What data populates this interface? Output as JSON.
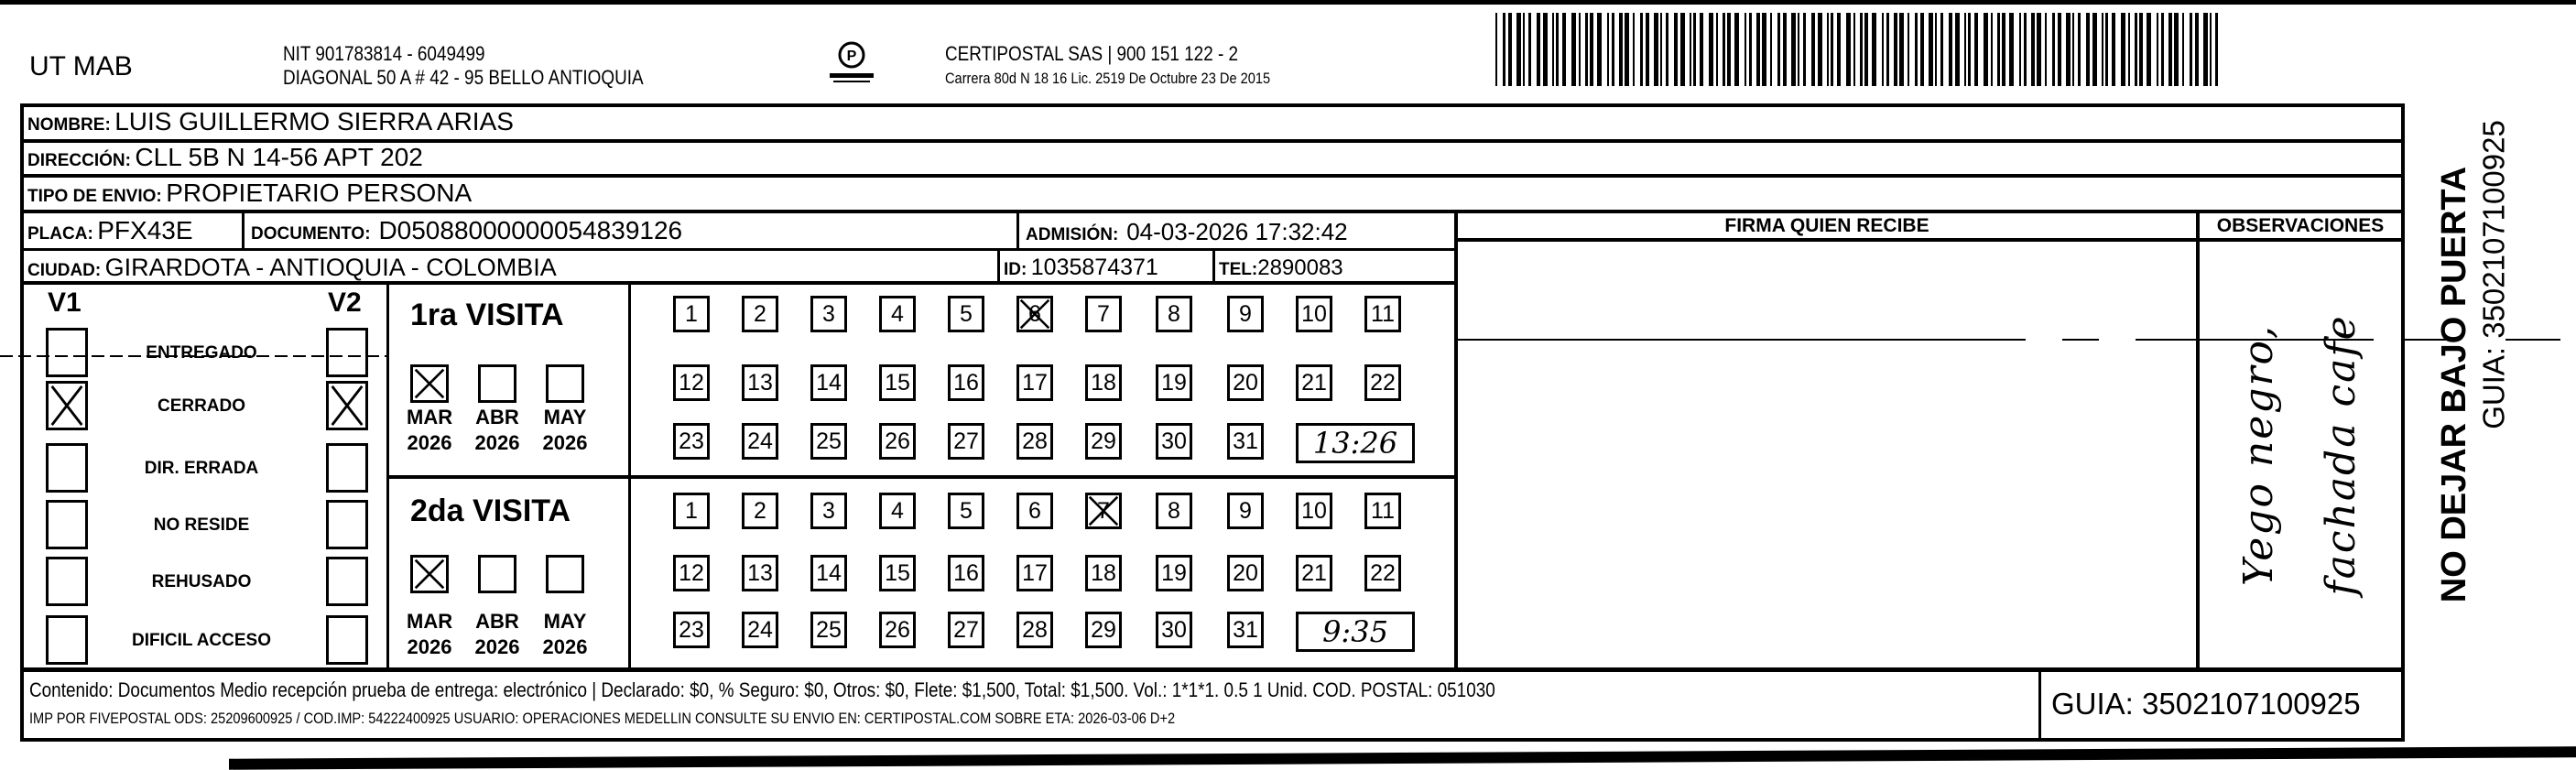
{
  "header": {
    "sender": "UT MAB",
    "nit": "NIT 901783814 - 6049499",
    "sender_address": "DIAGONAL 50 A # 42 - 95  BELLO  ANTIOQUIA",
    "logo_text": "CERTIPOSTAL",
    "company": "CERTIPOSTAL SAS | 900 151 122 - 2",
    "license": "Carrera 80d N 18 16  Lic. 2519 De Octubre 23 De 2015",
    "barcode_value": "3502107100925"
  },
  "recipient": {
    "nombre_label": "NOMBRE:",
    "nombre": "LUIS GUILLERMO SIERRA ARIAS",
    "direccion_label": "DIRECCIÓN:",
    "direccion": "CLL 5B N 14-56 APT 202",
    "tipo_label": "TIPO DE ENVIO:",
    "tipo": "PROPIETARIO PERSONA",
    "placa_label": "PLACA:",
    "placa": "PFX43E",
    "documento_label": "DOCUMENTO:",
    "documento": "D05088000000054839126",
    "admision_label": "ADMISIÓN:",
    "admision": "04-03-2026 17:32:42",
    "ciudad_label": "CIUDAD:",
    "ciudad": "GIRARDOTA - ANTIOQUIA - COLOMBIA",
    "id_label": "ID:",
    "id": "1035874371",
    "tel_label": "TEL:",
    "tel": "2890083"
  },
  "columns": {
    "firma": "FIRMA QUIEN RECIBE",
    "observaciones": "OBSERVACIONES",
    "observaciones_handwritten": "Yego negro, fachada cafe"
  },
  "status": {
    "v1_label": "V1",
    "v2_label": "V2",
    "items": [
      {
        "label": "ENTREGADO",
        "v1": false,
        "v2": false
      },
      {
        "label": "CERRADO",
        "v1": true,
        "v2": true
      },
      {
        "label": "DIR. ERRADA",
        "v1": false,
        "v2": false
      },
      {
        "label": "NO RESIDE",
        "v1": false,
        "v2": false
      },
      {
        "label": "REHUSADO",
        "v1": false,
        "v2": false
      },
      {
        "label": "DIFICIL ACCESO",
        "v1": false,
        "v2": false
      }
    ]
  },
  "visits": [
    {
      "title": "1ra VISITA",
      "months": [
        {
          "month": "MAR",
          "year": "2026",
          "checked": true
        },
        {
          "month": "ABR",
          "year": "2026",
          "checked": false
        },
        {
          "month": "MAY",
          "year": "2026",
          "checked": false
        }
      ],
      "checked_day": 6,
      "time": "13:26"
    },
    {
      "title": "2da VISITA",
      "months": [
        {
          "month": "MAR",
          "year": "2026",
          "checked": true
        },
        {
          "month": "ABR",
          "year": "2026",
          "checked": false
        },
        {
          "month": "MAY",
          "year": "2026",
          "checked": false
        }
      ],
      "checked_day": 7,
      "time": "9:35"
    }
  ],
  "footer": {
    "line1": "Contenido: Documentos Medio recepción prueba de entrega: electrónico | Declarado: $0, % Seguro: $0, Otros: $0, Flete: $1,500, Total: $1,500. Vol.: 1*1*1. 0.5  1 Unid. COD. POSTAL: 051030",
    "line2": "IMP POR FIVEPOSTAL ODS: 25209600925 / COD.IMP: 54222400925 USUARIO: OPERACIONES MEDELLIN CONSULTE SU ENVIO EN: CERTIPOSTAL.COM SOBRE ETA: 2026-03-06 D+2",
    "guia": "GUIA: 3502107100925"
  },
  "side": {
    "warning": "NO DEJAR BAJO PUERTA",
    "guia": "GUIA: 3502107100925"
  }
}
